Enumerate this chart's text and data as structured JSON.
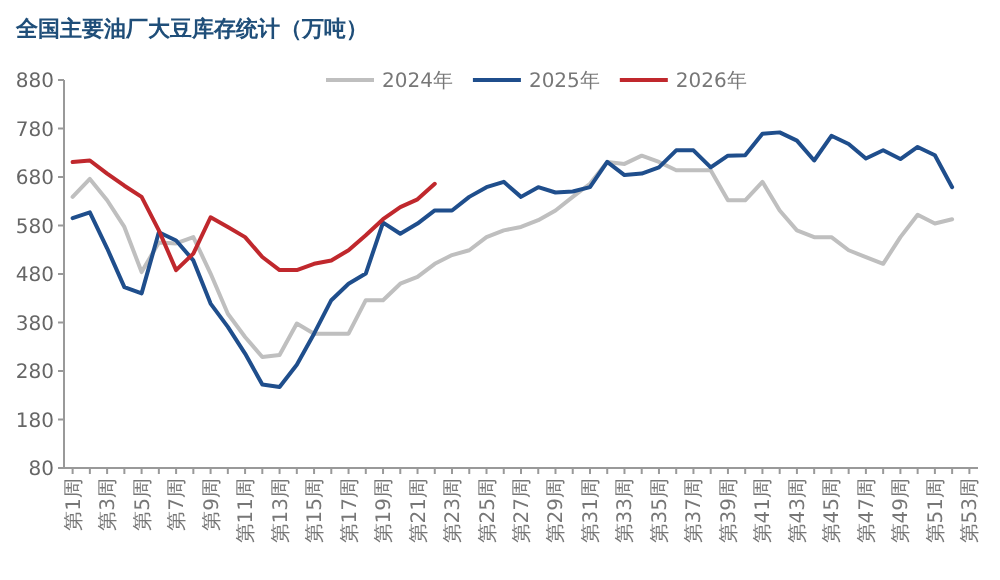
{
  "chart_data": {
    "type": "line",
    "title": "全国主要油厂大豆库存统计（万吨）",
    "categories": [
      "第1周",
      null,
      "第3周",
      null,
      "第5周",
      null,
      "第7周",
      null,
      "第9周",
      null,
      "第11周",
      null,
      "第13周",
      null,
      "第15周",
      null,
      "第17周",
      null,
      "第19周",
      null,
      "第21周",
      null,
      "第23周",
      null,
      "第25周",
      null,
      "第27周",
      null,
      "第29周",
      null,
      "第31周",
      null,
      "第33周",
      null,
      "第35周",
      null,
      "第37周",
      null,
      "第39周",
      null,
      "第41周",
      null,
      "第43周",
      null,
      "第45周",
      null,
      "第47周",
      null,
      "第49周",
      null,
      "第51周",
      null,
      "第53周"
    ],
    "series": [
      {
        "name": "2024年",
        "color": "#bfbfbf",
        "values": [
          639,
          676,
          632,
          577,
          484,
          545,
          543,
          556,
          481,
          398,
          350,
          309,
          313,
          378,
          357,
          357,
          357,
          426,
          426,
          460,
          474,
          501,
          519,
          529,
          556,
          570,
          577,
          591,
          611,
          639,
          666,
          711,
          707,
          724,
          711,
          694,
          694,
          694,
          632,
          632,
          670,
          611,
          570,
          556,
          556,
          529,
          515,
          501,
          556,
          602,
          584,
          593,
          null
        ]
      },
      {
        "name": "2025年",
        "color": "#1f4e8c",
        "values": [
          595,
          607,
          533,
          453,
          440,
          566,
          549,
          508,
          419,
          371,
          316,
          252,
          247,
          293,
          357,
          426,
          460,
          481,
          586,
          563,
          584,
          611,
          611,
          639,
          659,
          670,
          639,
          659,
          648,
          650,
          659,
          711,
          684,
          687,
          700,
          735,
          735,
          700,
          724,
          725,
          769,
          772,
          755,
          714,
          765,
          748,
          718,
          735,
          717,
          742,
          725,
          659,
          null
        ]
      },
      {
        "name": "2026年",
        "color": "#c0282d",
        "values": [
          711,
          714,
          687,
          662,
          639,
          570,
          488,
          522,
          597,
          577,
          556,
          515,
          488,
          488,
          501,
          508,
          529,
          560,
          593,
          618,
          634,
          666,
          null,
          null,
          null,
          null,
          null,
          null,
          null,
          null,
          null,
          null,
          null,
          null,
          null,
          null,
          null,
          null,
          null,
          null,
          null,
          null,
          null,
          null,
          null,
          null,
          null,
          null,
          null,
          null,
          null,
          null,
          null
        ]
      }
    ],
    "ylim": [
      80,
      880
    ],
    "yticks": [
      80,
      180,
      280,
      380,
      480,
      580,
      680,
      780,
      880
    ],
    "grid": false,
    "legend": "top",
    "marker": "none",
    "line_style": "solid"
  }
}
